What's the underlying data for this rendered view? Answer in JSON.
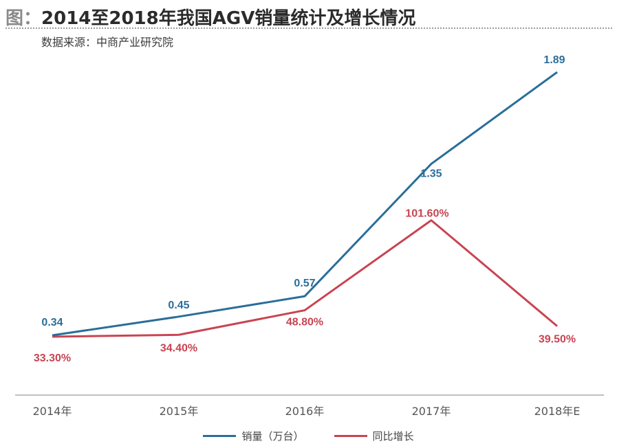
{
  "header": {
    "prefix": "图：",
    "title": "2014至2018年我国AGV销量统计及增长情况",
    "source": "数据来源：中商产业研究院"
  },
  "colors": {
    "sales": "#2a6e99",
    "growth": "#c84451",
    "axis": "#bfbfbf"
  },
  "chart_data": {
    "type": "line",
    "title": "2014至2018年我国AGV销量统计及增长情况",
    "categories": [
      "2014年",
      "2015年",
      "2016年",
      "2017年",
      "2018年E"
    ],
    "series": [
      {
        "name": "销量（万台）",
        "values": [
          0.34,
          0.45,
          0.57,
          1.35,
          1.89
        ],
        "labels": [
          "0.34",
          "0.45",
          "0.57",
          "1.35",
          "1.89"
        ]
      },
      {
        "name": "同比增长",
        "values": [
          33.3,
          34.4,
          48.8,
          101.6,
          39.5
        ],
        "labels": [
          "33.30%",
          "34.40%",
          "48.80%",
          "101.60%",
          "39.50%"
        ]
      }
    ],
    "legend_position": "bottom",
    "grid": false
  }
}
